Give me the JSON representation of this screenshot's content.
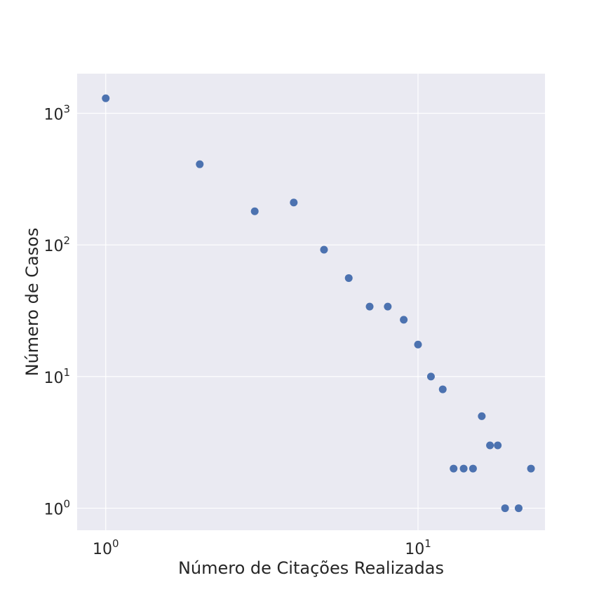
{
  "chart_data": {
    "type": "scatter",
    "title": "",
    "xlabel": "Número de Citações Realizadas",
    "ylabel": "Número de Casos",
    "xscale": "log",
    "yscale": "log",
    "xlim": [
      0.81,
      25.5
    ],
    "ylim": [
      0.68,
      2000
    ],
    "grid": true,
    "legend": "none",
    "colors": {
      "background": "#eaeaf2",
      "grid": "#ffffff",
      "marker": "#4c72b0",
      "text": "#262626"
    },
    "x_ticks": [
      {
        "base": "10",
        "exp": "0",
        "value": 1
      },
      {
        "base": "10",
        "exp": "1",
        "value": 10
      }
    ],
    "y_ticks": [
      {
        "base": "10",
        "exp": "0",
        "value": 1
      },
      {
        "base": "10",
        "exp": "1",
        "value": 10
      },
      {
        "base": "10",
        "exp": "2",
        "value": 100
      },
      {
        "base": "10",
        "exp": "3",
        "value": 1000
      }
    ],
    "points": [
      {
        "x": 1,
        "y": 1300
      },
      {
        "x": 2,
        "y": 410
      },
      {
        "x": 3,
        "y": 180
      },
      {
        "x": 4,
        "y": 210
      },
      {
        "x": 5,
        "y": 92
      },
      {
        "x": 6,
        "y": 56
      },
      {
        "x": 7,
        "y": 34
      },
      {
        "x": 8,
        "y": 34
      },
      {
        "x": 9,
        "y": 27
      },
      {
        "x": 10,
        "y": 17.5
      },
      {
        "x": 11,
        "y": 10
      },
      {
        "x": 12,
        "y": 8
      },
      {
        "x": 13,
        "y": 2
      },
      {
        "x": 14,
        "y": 2
      },
      {
        "x": 15,
        "y": 2
      },
      {
        "x": 16,
        "y": 5
      },
      {
        "x": 17,
        "y": 3
      },
      {
        "x": 18,
        "y": 3
      },
      {
        "x": 19,
        "y": 1
      },
      {
        "x": 21,
        "y": 1
      },
      {
        "x": 23,
        "y": 2
      }
    ]
  }
}
